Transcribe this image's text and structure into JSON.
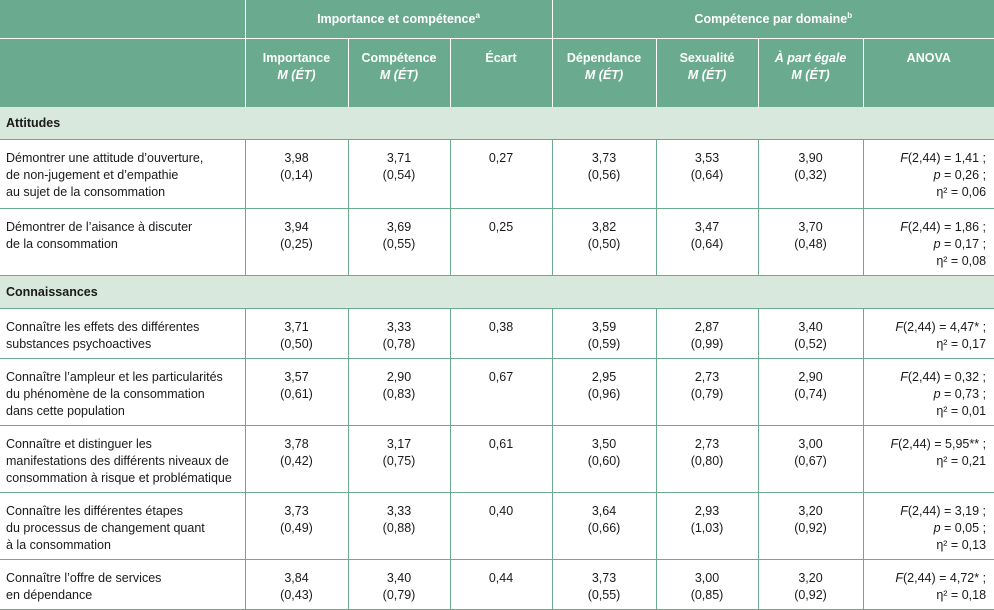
{
  "headers": {
    "group1": "Importance et compétence",
    "group1_sup": "a",
    "group2": "Compétence par domaine",
    "group2_sup": "b",
    "col_importance": "Importance",
    "col_competence": "Compétence",
    "col_ecart": "Écart",
    "col_dependance": "Dépendance",
    "col_sexualite": "Sexualité",
    "col_apart": "À part égale",
    "col_anova": "ANOVA",
    "m_et": "M (ÉT)"
  },
  "sections": [
    {
      "title": "Attitudes",
      "rows": [
        {
          "label": [
            "Démontrer une attitude d’ouverture,",
            "de non-jugement et d’empathie",
            "au sujet de la consommation"
          ],
          "importance": [
            "3,98",
            "(0,14)"
          ],
          "competence": [
            "3,71",
            "(0,54)"
          ],
          "ecart": "0,27",
          "dependance": [
            "3,73",
            "(0,56)"
          ],
          "sexualite": [
            "3,53",
            "(0,64)"
          ],
          "apart": [
            "3,90",
            "(0,32)"
          ],
          "anova": [
            "F(2,44) = 1,41 ;",
            "p = 0,26 ;",
            "η² = 0,06"
          ]
        },
        {
          "label": [
            "Démontrer de l’aisance à discuter",
            "de la consommation"
          ],
          "importance": [
            "3,94",
            "(0,25)"
          ],
          "competence": [
            "3,69",
            "(0,55)"
          ],
          "ecart": "0,25",
          "dependance": [
            "3,82",
            "(0,50)"
          ],
          "sexualite": [
            "3,47",
            "(0,64)"
          ],
          "apart": [
            "3,70",
            "(0,48)"
          ],
          "anova": [
            "F(2,44) = 1,86 ;",
            "p = 0,17 ;",
            "η² = 0,08"
          ]
        }
      ]
    },
    {
      "title": "Connaissances",
      "rows": [
        {
          "label": [
            "Connaître les effets des différentes",
            "substances psychoactives"
          ],
          "importance": [
            "3,71",
            "(0,50)"
          ],
          "competence": [
            "3,33",
            "(0,78)"
          ],
          "ecart": "0,38",
          "dependance": [
            "3,59",
            "(0,59)"
          ],
          "sexualite": [
            "2,87",
            "(0,99)"
          ],
          "apart": [
            "3,40",
            "(0,52)"
          ],
          "anova": [
            "F(2,44) = 4,47* ;",
            "η² = 0,17"
          ]
        },
        {
          "label": [
            "Connaître l’ampleur et les particularités",
            "du phénomène de la consommation",
            "dans cette population"
          ],
          "importance": [
            "3,57",
            "(0,61)"
          ],
          "competence": [
            "2,90",
            "(0,83)"
          ],
          "ecart": "0,67",
          "dependance": [
            "2,95",
            "(0,96)"
          ],
          "sexualite": [
            "2,73",
            "(0,79)"
          ],
          "apart": [
            "2,90",
            "(0,74)"
          ],
          "anova": [
            "F(2,44) = 0,32 ;",
            "p = 0,73 ;",
            "η² = 0,01"
          ]
        },
        {
          "label": [
            "Connaître et distinguer les",
            "manifestations des différents niveaux de",
            "consommation à risque et problématique"
          ],
          "importance": [
            "3,78",
            "(0,42)"
          ],
          "competence": [
            "3,17",
            "(0,75)"
          ],
          "ecart": "0,61",
          "dependance": [
            "3,50",
            "(0,60)"
          ],
          "sexualite": [
            "2,73",
            "(0,80)"
          ],
          "apart": [
            "3,00",
            "(0,67)"
          ],
          "anova": [
            "F(2,44) = 5,95** ;",
            "η² = 0,21"
          ]
        },
        {
          "label": [
            "Connaître les différentes étapes",
            "du processus de changement quant",
            "à la consommation"
          ],
          "importance": [
            "3,73",
            "(0,49)"
          ],
          "competence": [
            "3,33",
            "(0,88)"
          ],
          "ecart": "0,40",
          "dependance": [
            "3,64",
            "(0,66)"
          ],
          "sexualite": [
            "2,93",
            "(1,03)"
          ],
          "apart": [
            "3,20",
            "(0,92)"
          ],
          "anova": [
            "F(2,44) = 3,19 ;",
            "p = 0,05 ;",
            "η² = 0,13"
          ]
        },
        {
          "label": [
            "Connaître l’offre de services",
            "en dépendance"
          ],
          "importance": [
            "3,84",
            "(0,43)"
          ],
          "competence": [
            "3,40",
            "(0,79)"
          ],
          "ecart": "0,44",
          "dependance": [
            "3,73",
            "(0,55)"
          ],
          "sexualite": [
            "3,00",
            "(0,85)"
          ],
          "apart": [
            "3,20",
            "(0,92)"
          ],
          "anova": [
            "F(2,44) = 4,72* ;",
            "η² = 0,18"
          ]
        }
      ]
    }
  ]
}
